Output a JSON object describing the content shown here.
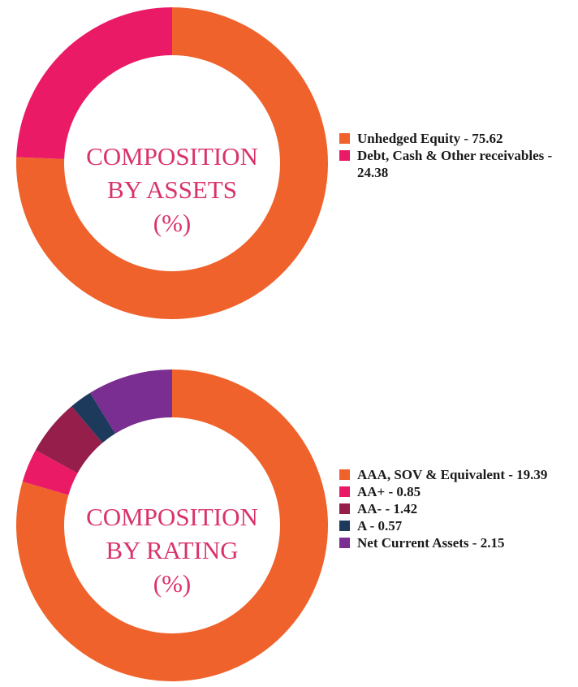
{
  "chart_data": [
    {
      "type": "pie",
      "donut": true,
      "center_title": [
        "COMPOSITION",
        "BY ASSETS",
        "(%)"
      ],
      "categories": [
        "Unhedged Equity",
        "Debt, Cash & Other receivables"
      ],
      "values": [
        75.62,
        24.38
      ],
      "legend_labels": [
        "Unhedged Equity - 75.62",
        "Debt, Cash & Other receivables - 24.38"
      ],
      "colors": [
        "#ef622c",
        "#ea1a66"
      ],
      "legend": "right"
    },
    {
      "type": "pie",
      "donut": true,
      "center_title": [
        "COMPOSITION",
        "BY RATING",
        "(%)"
      ],
      "categories": [
        "AAA, SOV & Equivalent",
        "AA+",
        "AA-",
        "A",
        "Net Current Assets"
      ],
      "values": [
        19.39,
        0.85,
        1.42,
        0.57,
        2.15
      ],
      "legend_labels": [
        "AAA, SOV & Equivalent - 19.39",
        "AA+ - 0.85",
        "AA- - 1.42",
        "A - 0.57",
        "Net Current Assets - 2.15"
      ],
      "colors": [
        "#ef622c",
        "#ea1a66",
        "#961e4b",
        "#1d3a5c",
        "#7a2e91"
      ],
      "legend": "right"
    }
  ]
}
